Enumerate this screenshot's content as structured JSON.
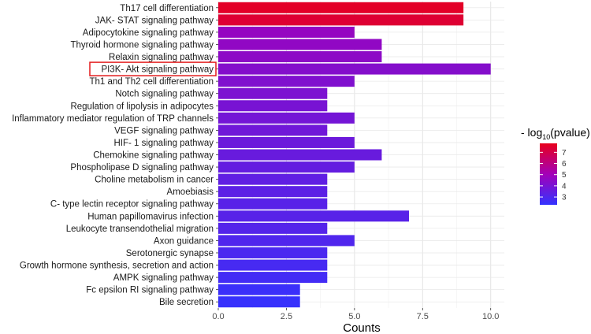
{
  "chart_data": {
    "type": "bar",
    "orientation": "horizontal",
    "title": "",
    "xlabel": "Counts",
    "ylabel": "",
    "xlim": [
      0,
      10.5
    ],
    "xticks": [
      0,
      2.5,
      5,
      7.5,
      10
    ],
    "xtick_labels": [
      "0.0",
      "2.5",
      "5.0",
      "7.5",
      "10.0"
    ],
    "grid": true,
    "highlighted_category": "PI3K- Akt signaling pathway",
    "categories": [
      "Th17 cell differentiation",
      "JAK- STAT signaling pathway",
      "Adipocytokine signaling pathway",
      "Thyroid hormone signaling pathway",
      "Relaxin signaling pathway",
      "PI3K- Akt signaling pathway",
      "Th1 and Th2 cell differentiation",
      "Notch signaling pathway",
      "Regulation of lipolysis in adipocytes",
      "Inflammatory mediator regulation of TRP channels",
      "VEGF signaling pathway",
      "HIF- 1 signaling pathway",
      "Chemokine signaling pathway",
      "Phospholipase D signaling pathway",
      "Choline metabolism in cancer",
      "Amoebiasis",
      "C- type lectin receptor signaling pathway",
      "Human papillomavirus infection",
      "Leukocyte transendothelial migration",
      "Axon guidance",
      "Serotonergic synapse",
      "Growth hormone synthesis, secretion and action",
      "AMPK signaling pathway",
      "Fc epsilon RI signaling pathway",
      "Bile secretion"
    ],
    "values": [
      9,
      9,
      5,
      6,
      6,
      10,
      5,
      4,
      4,
      5,
      4,
      5,
      6,
      5,
      4,
      4,
      4,
      7,
      4,
      5,
      4,
      4,
      4,
      3,
      3
    ],
    "color_values": [
      7.6,
      7.4,
      4.7,
      4.6,
      4.5,
      4.3,
      4.2,
      4.1,
      4.0,
      3.9,
      3.8,
      3.7,
      3.6,
      3.5,
      3.4,
      3.3,
      3.2,
      3.2,
      3.1,
      3.0,
      2.9,
      2.8,
      2.7,
      2.5,
      2.4
    ],
    "legend": {
      "title_prefix": "- log",
      "title_subscript": "10",
      "title_suffix": "(pvalue)",
      "position": "right",
      "range": [
        2.3,
        7.8
      ],
      "ticks": [
        3,
        4,
        5,
        6,
        7
      ],
      "tick_labels": [
        "3",
        "4",
        "5",
        "6",
        "7"
      ],
      "low_color": "#3333ff",
      "mid_color": "#a300b8",
      "high_color": "#e8001c"
    }
  }
}
